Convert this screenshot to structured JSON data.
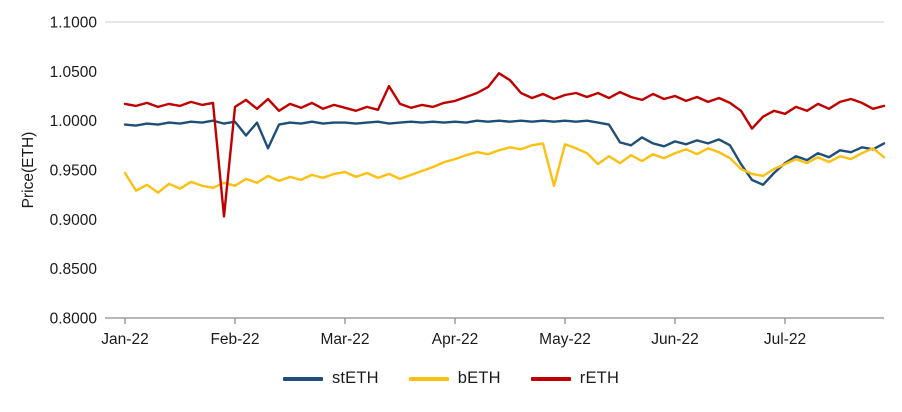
{
  "chart_data": {
    "type": "line",
    "title": "",
    "xlabel": "",
    "ylabel": "Price(ETH)",
    "ylim": [
      0.8,
      1.1
    ],
    "grid": "top-and-bottom-border-only",
    "legend_position": "bottom",
    "x_unit": "months since Jan-2022",
    "x_step": 0.1,
    "y_ticks": {
      "values": [
        1.1,
        1.05,
        1.0,
        0.95,
        0.9,
        0.85,
        0.8
      ],
      "labels": [
        "1.1000",
        "1.0500",
        "1.0000",
        "0.9500",
        "0.9000",
        "0.8500",
        "0.8000"
      ]
    },
    "x_ticks": {
      "values": [
        0,
        1,
        2,
        3,
        4,
        5,
        6
      ],
      "labels": [
        "Jan-22",
        "Feb-22",
        "Mar-22",
        "Apr-22",
        "May-22",
        "Jun-22",
        "Jul-22"
      ]
    },
    "series": [
      {
        "name": "stETH",
        "color": "#1f4e79",
        "values": [
          0.996,
          0.995,
          0.997,
          0.996,
          0.998,
          0.997,
          0.999,
          0.998,
          1.0,
          0.997,
          0.999,
          0.985,
          0.998,
          0.972,
          0.996,
          0.998,
          0.997,
          0.999,
          0.997,
          0.998,
          0.998,
          0.997,
          0.998,
          0.999,
          0.997,
          0.998,
          0.999,
          0.998,
          0.999,
          0.998,
          0.999,
          0.998,
          1.0,
          0.999,
          1.0,
          0.999,
          1.0,
          0.999,
          1.0,
          0.999,
          1.0,
          0.999,
          1.0,
          0.998,
          0.996,
          0.978,
          0.975,
          0.983,
          0.977,
          0.974,
          0.979,
          0.976,
          0.98,
          0.977,
          0.981,
          0.975,
          0.956,
          0.94,
          0.935,
          0.947,
          0.957,
          0.964,
          0.96,
          0.967,
          0.963,
          0.97,
          0.968,
          0.973,
          0.971,
          0.977
        ]
      },
      {
        "name": "bETH",
        "color": "#fcc011",
        "values": [
          0.947,
          0.929,
          0.935,
          0.927,
          0.936,
          0.931,
          0.938,
          0.934,
          0.932,
          0.937,
          0.934,
          0.941,
          0.937,
          0.944,
          0.939,
          0.943,
          0.94,
          0.945,
          0.942,
          0.946,
          0.948,
          0.943,
          0.947,
          0.942,
          0.946,
          0.941,
          0.945,
          0.949,
          0.953,
          0.958,
          0.961,
          0.965,
          0.968,
          0.966,
          0.97,
          0.973,
          0.971,
          0.975,
          0.977,
          0.934,
          0.976,
          0.972,
          0.967,
          0.956,
          0.964,
          0.957,
          0.965,
          0.959,
          0.966,
          0.962,
          0.967,
          0.971,
          0.966,
          0.972,
          0.968,
          0.962,
          0.951,
          0.946,
          0.944,
          0.951,
          0.956,
          0.961,
          0.957,
          0.963,
          0.958,
          0.964,
          0.961,
          0.967,
          0.972,
          0.963
        ]
      },
      {
        "name": "rETH",
        "color": "#c00000",
        "values": [
          1.017,
          1.015,
          1.018,
          1.014,
          1.017,
          1.015,
          1.019,
          1.016,
          1.018,
          0.903,
          1.014,
          1.021,
          1.012,
          1.022,
          1.01,
          1.017,
          1.013,
          1.018,
          1.012,
          1.016,
          1.013,
          1.01,
          1.014,
          1.011,
          1.035,
          1.017,
          1.013,
          1.016,
          1.014,
          1.018,
          1.02,
          1.024,
          1.028,
          1.034,
          1.048,
          1.041,
          1.028,
          1.023,
          1.027,
          1.022,
          1.026,
          1.028,
          1.024,
          1.028,
          1.023,
          1.029,
          1.024,
          1.021,
          1.027,
          1.022,
          1.025,
          1.02,
          1.024,
          1.019,
          1.023,
          1.018,
          1.01,
          0.992,
          1.004,
          1.01,
          1.007,
          1.014,
          1.01,
          1.017,
          1.012,
          1.019,
          1.022,
          1.018,
          1.012,
          1.015
        ]
      }
    ]
  },
  "colors": {
    "background": "#ffffff",
    "text": "#1a1a1a",
    "axis_line": "#8c8c8c",
    "top_border": "#d6d6d6"
  }
}
